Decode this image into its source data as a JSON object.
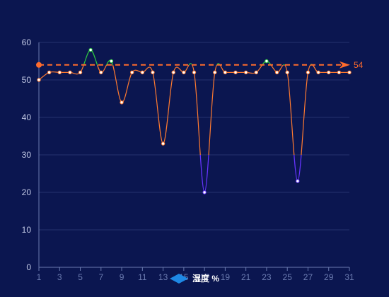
{
  "chart_data": {
    "type": "line",
    "title": "",
    "xlabel": "",
    "ylabel": "",
    "x": [
      1,
      2,
      3,
      4,
      5,
      6,
      7,
      8,
      9,
      10,
      11,
      12,
      13,
      14,
      15,
      16,
      17,
      18,
      19,
      20,
      21,
      22,
      23,
      24,
      25,
      26,
      27,
      28,
      29,
      30,
      31
    ],
    "x_tick_labels": [
      "1",
      "3",
      "5",
      "7",
      "9",
      "11",
      "13",
      "15",
      "17",
      "19",
      "21",
      "23",
      "25",
      "27",
      "29",
      "31"
    ],
    "y_tick_labels": [
      "0",
      "10",
      "20",
      "30",
      "40",
      "50",
      "60"
    ],
    "ylim": [
      0,
      60
    ],
    "grid": true,
    "legend_position": "bottom",
    "series": [
      {
        "name": "湿度 %",
        "values": [
          50,
          52,
          52,
          52,
          52,
          58,
          52,
          55,
          44,
          52,
          52,
          52,
          33,
          52,
          52,
          52,
          20,
          52,
          52,
          52,
          52,
          52,
          55,
          52,
          52,
          23,
          52,
          52,
          52,
          52,
          52
        ]
      }
    ],
    "markline": {
      "value": 54,
      "label": "54"
    },
    "colors": {
      "background": "#0b1650",
      "grid": "#26336e",
      "axis": "#6b7bb0",
      "tick_label": "#c3cae6",
      "line_normal": "#ff7a2f",
      "line_high": "#2ecc40",
      "line_low": "#6633ff",
      "point_fill": "#ffffff",
      "markline": "#ff6b2c",
      "legend_marker": "#1e88e5",
      "legend_text": "#ffffff"
    }
  }
}
